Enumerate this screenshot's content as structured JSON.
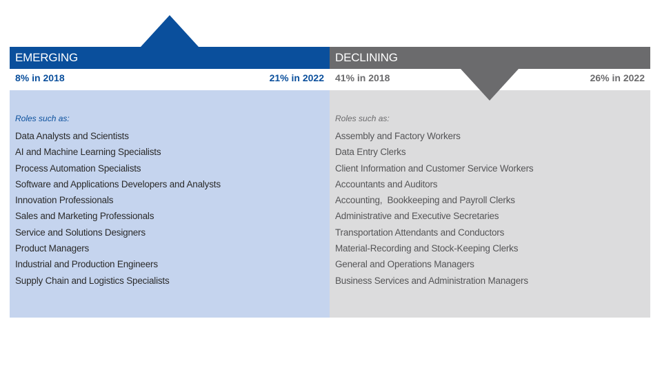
{
  "emerging": {
    "title": "EMERGING",
    "stat_start": "8% in 2018",
    "stat_end": "21% in 2022",
    "roles_label": "Roles such as:",
    "roles": [
      "Data Analysts and Scientists",
      "AI and Machine Learning Specialists",
      "Process Automation Specialists",
      "Software and Applications Developers and Analysts",
      "Innovation Professionals",
      "Sales and Marketing Professionals",
      "Service and Solutions Designers",
      "Product Managers",
      "Industrial and Production Engineers",
      "Supply Chain and Logistics Specialists"
    ]
  },
  "declining": {
    "title": "DECLINING",
    "stat_start": "41% in 2018",
    "stat_end": "26% in 2022",
    "roles_label": "Roles such as:",
    "roles": [
      "Assembly and Factory Workers",
      "Data Entry Clerks",
      "Client Information and Customer Service Workers",
      "Accountants and Auditors",
      "Accounting,  Bookkeeping and Payroll Clerks",
      "Administrative and Executive Secretaries",
      "Transportation Attendants and Conductors",
      "Material-Recording and Stock-Keeping Clerks",
      "General and Operations Managers",
      "Business Services and Administration Managers"
    ]
  },
  "colors": {
    "emerging_accent": "#0a4f9c",
    "emerging_fill": "#c5d4ee",
    "declining_accent": "#6b6b6d",
    "declining_fill": "#dcdcdd"
  },
  "icons": {
    "emerging_indicator": "up-arrow-icon",
    "declining_indicator": "down-arrow-icon"
  }
}
